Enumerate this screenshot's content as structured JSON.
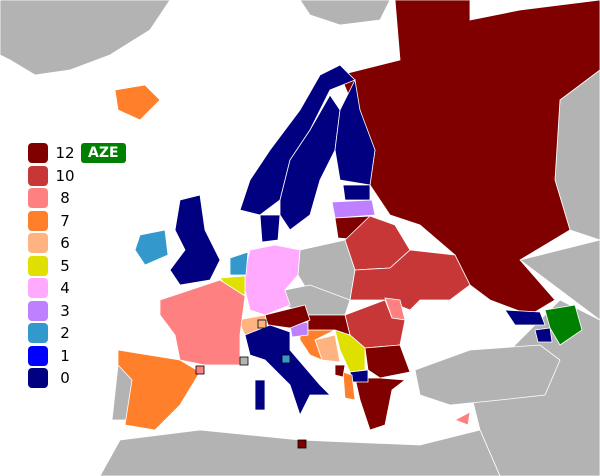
{
  "legend": {
    "items": [
      {
        "label": "12",
        "color": "#800000"
      },
      {
        "label": "10",
        "color": "#c83737"
      },
      {
        "label": "8",
        "color": "#ff8080"
      },
      {
        "label": "7",
        "color": "#ff7f2a"
      },
      {
        "label": "6",
        "color": "#ffb380"
      },
      {
        "label": "5",
        "color": "#e0e000"
      },
      {
        "label": "4",
        "color": "#ffaaff"
      },
      {
        "label": "3",
        "color": "#bf80ff"
      },
      {
        "label": "2",
        "color": "#3399cc"
      },
      {
        "label": "1",
        "color": "#0000ff"
      },
      {
        "label": "0",
        "color": "#000080"
      }
    ]
  },
  "voting_country": {
    "label": "AZE",
    "color": "#008000"
  },
  "non_participant_color": "#b3b3b3"
}
